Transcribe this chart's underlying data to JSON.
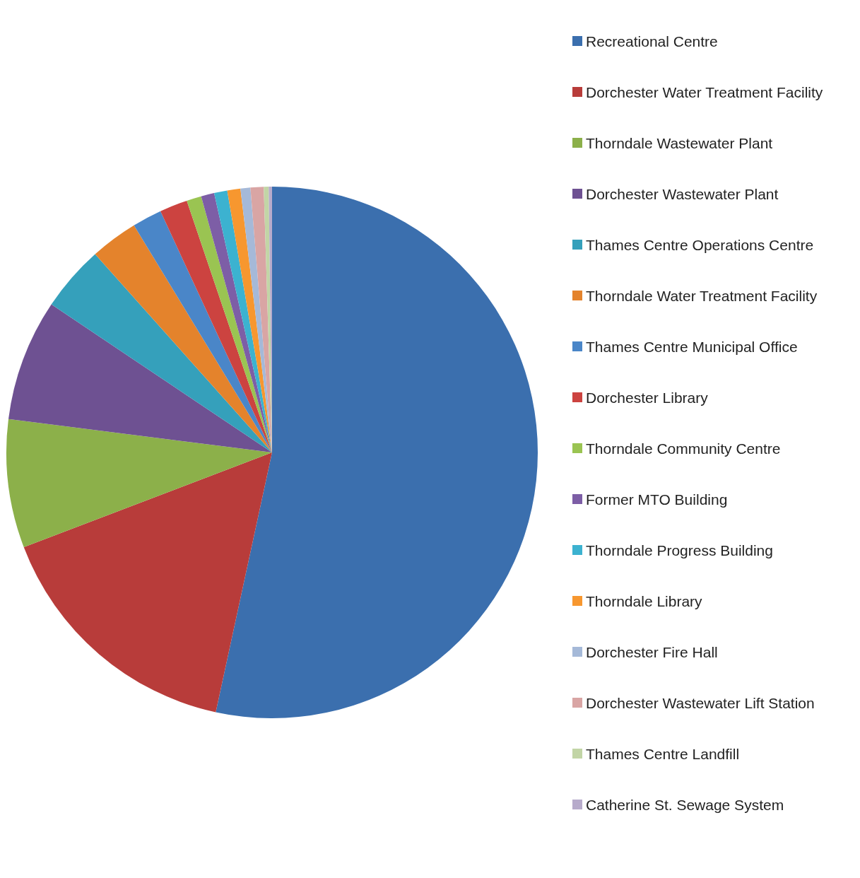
{
  "chart_data": {
    "type": "pie",
    "categories": [
      "Recreational Centre",
      "Dorchester Water Treatment Facility",
      "Thorndale Wastewater Plant",
      "Dorchester Wastewater Plant",
      "Thames Centre Operations Centre",
      "Thorndale Water Treatment Facility",
      "Thames Centre Municipal Office",
      "Dorchester Library",
      "Thorndale Community Centre",
      "Former MTO Building",
      "Thorndale Progress Building",
      "Thorndale Library",
      "Dorchester Fire Hall",
      "Dorchester Wastewater Lift Station",
      "Thames Centre Landfill",
      "Catherine St. Sewage System"
    ],
    "values": [
      53.4,
      15.8,
      7.8,
      7.4,
      4.0,
      2.9,
      1.8,
      1.7,
      0.9,
      0.8,
      0.8,
      0.8,
      0.6,
      0.8,
      0.3,
      0.2
    ],
    "colors": [
      "#3b6fae",
      "#b83c3a",
      "#8cb04a",
      "#6e5192",
      "#35a0bb",
      "#e4832c",
      "#4a86c8",
      "#cc4340",
      "#9ac452",
      "#7d5ea6",
      "#3cb2d0",
      "#f7972f",
      "#a5b9d8",
      "#d9a5a4",
      "#c2d5a6",
      "#b7abcb"
    ],
    "legend": "right"
  }
}
